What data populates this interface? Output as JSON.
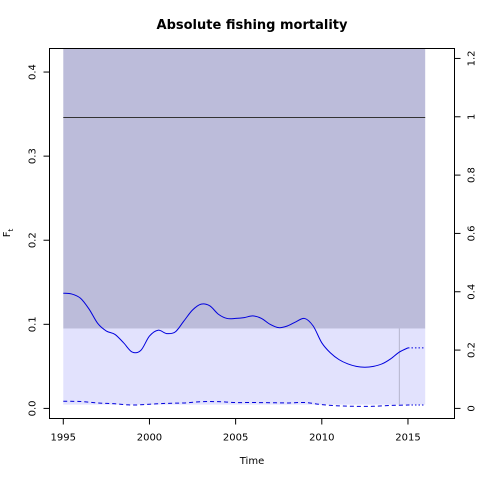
{
  "chart_data": {
    "type": "line",
    "title": "Absolute fishing mortality",
    "xlabel": "Time",
    "ylabel": "F",
    "ylabel_subscript": "t",
    "xlim": [
      1994.2,
      2017.7
    ],
    "ylim": [
      -0.012,
      0.428
    ],
    "ylim_right": [
      -0.0346,
      1.2341
    ],
    "x_ticks": [
      "1995",
      "2000",
      "2005",
      "2010",
      "2015"
    ],
    "y_ticks": [
      "0.0",
      "0.1",
      "0.2",
      "0.3",
      "0.4"
    ],
    "y_ticks_right": [
      "0",
      "0.2",
      "0.4",
      "0.6",
      "0.8",
      "1",
      "1.2"
    ],
    "grid": false,
    "colors": {
      "outer_region": "#bcbcda",
      "inner_region": "#e2e2fd",
      "series": "#0000dd",
      "reference_line": "#333333",
      "vline": "#b5b5cc"
    },
    "shaded_regions": [
      {
        "x0": 1995,
        "x1": 2016,
        "y0": 0.095,
        "y1": 0.428,
        "color": "#bcbcda"
      },
      {
        "x0": 1995,
        "x1": 2016,
        "y0": 0.0045,
        "y1": 0.095,
        "color": "#e2e2fd"
      }
    ],
    "reference_line": {
      "y": 0.346
    },
    "vline": {
      "x": 2014.5
    },
    "series": [
      {
        "style": "solid",
        "x": [
          1995,
          1995.5,
          1996,
          1996.5,
          1997,
          1997.5,
          1998,
          1998.5,
          1999,
          1999.5,
          2000,
          2000.5,
          2001,
          2001.5,
          2002,
          2002.5,
          2003,
          2003.5,
          2004,
          2004.5,
          2005,
          2005.5,
          2006,
          2006.5,
          2007,
          2007.5,
          2008,
          2008.5,
          2009,
          2009.5,
          2010,
          2010.5,
          2011,
          2011.5,
          2012,
          2012.5,
          2013,
          2013.5,
          2014,
          2014.5,
          2015
        ],
        "y": [
          0.137,
          0.136,
          0.131,
          0.118,
          0.101,
          0.092,
          0.088,
          0.078,
          0.067,
          0.069,
          0.086,
          0.093,
          0.089,
          0.091,
          0.104,
          0.117,
          0.124,
          0.122,
          0.112,
          0.107,
          0.107,
          0.108,
          0.11,
          0.107,
          0.1,
          0.096,
          0.098,
          0.103,
          0.107,
          0.098,
          0.078,
          0.066,
          0.058,
          0.053,
          0.05,
          0.049,
          0.05,
          0.053,
          0.059,
          0.067,
          0.072
        ]
      },
      {
        "style": "dotted",
        "x": [
          2015,
          2016
        ],
        "y": [
          0.072,
          0.072
        ]
      },
      {
        "style": "dashed",
        "x": [
          1995,
          1996,
          1997,
          1998,
          1999,
          2000,
          2001,
          2002,
          2003,
          2004,
          2005,
          2006,
          2007,
          2008,
          2009,
          2010,
          2011,
          2012,
          2013,
          2014,
          2015
        ],
        "y": [
          0.0085,
          0.0082,
          0.0065,
          0.0055,
          0.004,
          0.005,
          0.006,
          0.0065,
          0.008,
          0.008,
          0.007,
          0.007,
          0.0068,
          0.0065,
          0.007,
          0.0045,
          0.003,
          0.0025,
          0.0025,
          0.0035,
          0.004
        ]
      },
      {
        "style": "dotted",
        "x": [
          2015,
          2016
        ],
        "y": [
          0.004,
          0.004
        ]
      }
    ]
  }
}
